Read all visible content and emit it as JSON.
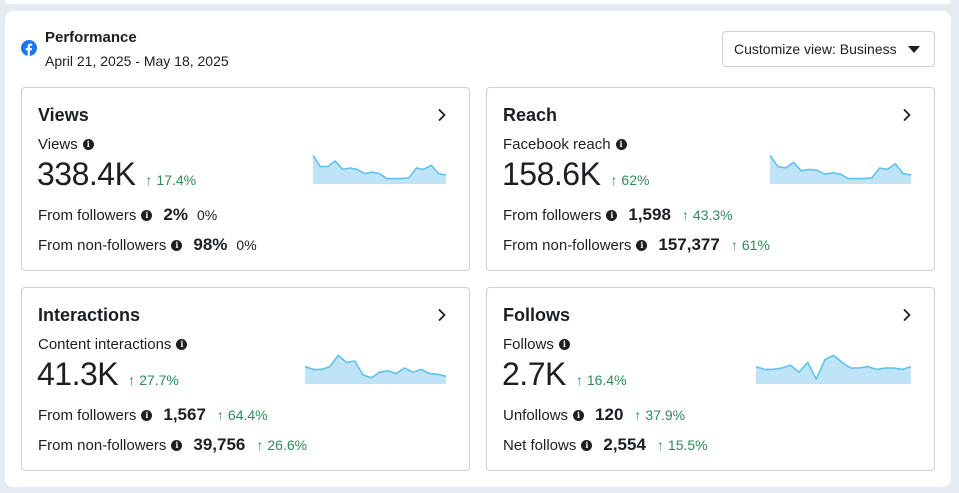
{
  "header": {
    "title": "Performance",
    "date_range": "April 21, 2025 - May 18, 2025",
    "customize_label": "Customize view: Business",
    "brand_color": "#1877f2"
  },
  "colors": {
    "positive": "#2e8b57",
    "sparkline_fill": "#bfe4f8",
    "sparkline_stroke": "#5ec2ee"
  },
  "cards": {
    "views": {
      "title": "Views",
      "metric_label": "Views",
      "value": "338.4K",
      "change": "17.4%",
      "rows": [
        {
          "label": "From followers",
          "value": "2%",
          "change": "0%"
        },
        {
          "label": "From non-followers",
          "value": "98%",
          "change": "0%"
        }
      ]
    },
    "reach": {
      "title": "Reach",
      "metric_label": "Facebook reach",
      "value": "158.6K",
      "change": "62%",
      "rows": [
        {
          "label": "From followers",
          "value": "1,598",
          "change": "43.3%"
        },
        {
          "label": "From non-followers",
          "value": "157,377",
          "change": "61%"
        }
      ]
    },
    "interactions": {
      "title": "Interactions",
      "metric_label": "Content interactions",
      "value": "41.3K",
      "change": "27.7%",
      "rows": [
        {
          "label": "From followers",
          "value": "1,567",
          "change": "64.4%"
        },
        {
          "label": "From non-followers",
          "value": "39,756",
          "change": "26.6%"
        }
      ]
    },
    "follows": {
      "title": "Follows",
      "metric_label": "Follows",
      "value": "2.7K",
      "change": "16.4%",
      "rows": [
        {
          "label": "Unfollows",
          "value": "120",
          "change": "37.9%"
        },
        {
          "label": "Net follows",
          "value": "2,554",
          "change": "15.5%"
        }
      ]
    }
  },
  "sparklines": {
    "views": [
      0.95,
      0.55,
      0.55,
      0.75,
      0.45,
      0.5,
      0.45,
      0.3,
      0.35,
      0.3,
      0.12,
      0.12,
      0.12,
      0.15,
      0.5,
      0.45,
      0.6,
      0.3,
      0.25
    ],
    "reach": [
      0.95,
      0.55,
      0.5,
      0.7,
      0.4,
      0.45,
      0.42,
      0.28,
      0.33,
      0.28,
      0.12,
      0.12,
      0.12,
      0.15,
      0.5,
      0.45,
      0.65,
      0.3,
      0.25
    ],
    "interactions": [
      0.55,
      0.45,
      0.45,
      0.55,
      0.95,
      0.7,
      0.75,
      0.25,
      0.15,
      0.35,
      0.4,
      0.3,
      0.5,
      0.35,
      0.45,
      0.3,
      0.28,
      0.2
    ],
    "follows": [
      0.55,
      0.45,
      0.45,
      0.5,
      0.6,
      0.35,
      0.7,
      0.1,
      0.8,
      0.95,
      0.7,
      0.5,
      0.5,
      0.55,
      0.45,
      0.5,
      0.5,
      0.45,
      0.55
    ]
  }
}
